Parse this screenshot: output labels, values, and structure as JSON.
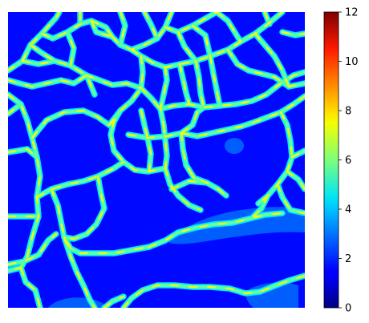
{
  "chart_data": {
    "type": "heatmap",
    "title": "",
    "xlabel": "",
    "ylabel": "",
    "axes_visible": false,
    "colormap": "jet",
    "background_value": 1.6,
    "colorbar": {
      "vmin": 0,
      "vmax": 12,
      "ticks": [
        0,
        2,
        4,
        6,
        8,
        10,
        12
      ],
      "tick_labels": [
        "0",
        "2",
        "4",
        "6",
        "8",
        "10",
        "12"
      ]
    },
    "value_levels": {
      "background": 1.6,
      "diffuse_blobs": 2.6,
      "vessel_edges": 4.2,
      "vessel_body": 5.6,
      "vessel_peaks": 7.4
    }
  }
}
